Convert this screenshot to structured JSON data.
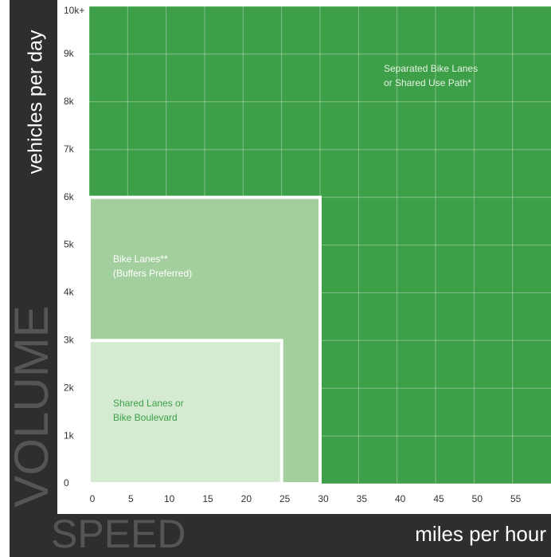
{
  "chart_data": {
    "type": "zones",
    "y_title": "vehicles per day",
    "y_axis_word": "VOLUME",
    "x_title": "miles per hour",
    "x_axis_word": "SPEED",
    "xlim": [
      0,
      60
    ],
    "xticks": [
      0,
      5,
      10,
      15,
      20,
      25,
      30,
      35,
      40,
      45,
      50,
      55
    ],
    "ylim": [
      0,
      10000
    ],
    "yticks": [
      0,
      {
        "value": 1000,
        "label": "1k"
      },
      {
        "value": 2000,
        "label": "2k"
      },
      {
        "value": 3000,
        "label": "3k"
      },
      {
        "value": 4000,
        "label": "4k"
      },
      {
        "value": 5000,
        "label": "5k"
      },
      {
        "value": 6000,
        "label": "6k"
      },
      {
        "value": 7000,
        "label": "7k"
      },
      {
        "value": 8000,
        "label": "8k"
      },
      {
        "value": 9000,
        "label": "9k"
      },
      {
        "value": 10000,
        "label": "10k+"
      }
    ],
    "grid": true,
    "zones": [
      {
        "label_lines": [
          "Separated Bike Lanes",
          "or Shared Use Path*"
        ],
        "x": [
          0,
          60
        ],
        "y": [
          0,
          10000
        ],
        "color": "#3d9f48",
        "label_color": "#e6f2e4"
      },
      {
        "label_lines": [
          "Bike Lanes**",
          "(Buffers Preferred)"
        ],
        "x": [
          0,
          30
        ],
        "y": [
          0,
          6000
        ],
        "color": "#a3cf9e",
        "label_color": "#ffffff"
      },
      {
        "label_lines": [
          "Shared Lanes or",
          "Bike Boulevard"
        ],
        "x": [
          0,
          25
        ],
        "y": [
          0,
          3000
        ],
        "color": "#d5ebd1",
        "label_color": "#3d9f48"
      }
    ]
  }
}
